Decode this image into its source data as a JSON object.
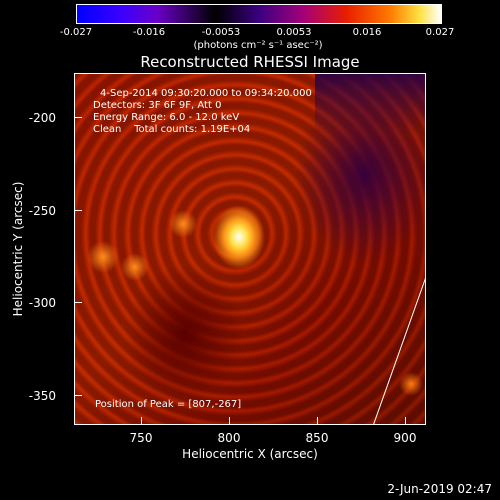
{
  "colorbar": {
    "ticks": [
      "-0.027",
      "-0.016",
      "-0.0053",
      "0.0053",
      "0.016",
      "0.027"
    ],
    "units": "(photons cm⁻² s⁻¹ asec⁻²)"
  },
  "title": "Reconstructed RHESSI Image",
  "info": {
    "time_range": "4-Sep-2014 09:30:20.000 to 09:34:20.000",
    "detectors": "Detectors: 3F 6F 9F, Att 0",
    "energy": "Energy Range: 6.0 - 12.0 keV",
    "clean": "Clean    Total counts: 1.19E+04",
    "peak": "Position of Peak = [807,-267]"
  },
  "axes": {
    "xlabel": "Heliocentric X (arcsec)",
    "ylabel": "Heliocentric Y (arcsec)",
    "xticks": [
      "750",
      "800",
      "850",
      "900"
    ],
    "yticks": [
      "-200",
      "-250",
      "-300",
      "-350"
    ]
  },
  "footer": {
    "date": "2-Jun-2019 02:47"
  },
  "colors": {
    "peak": "#ffffff",
    "background": "#b81a00",
    "limb": "#ffffff"
  }
}
